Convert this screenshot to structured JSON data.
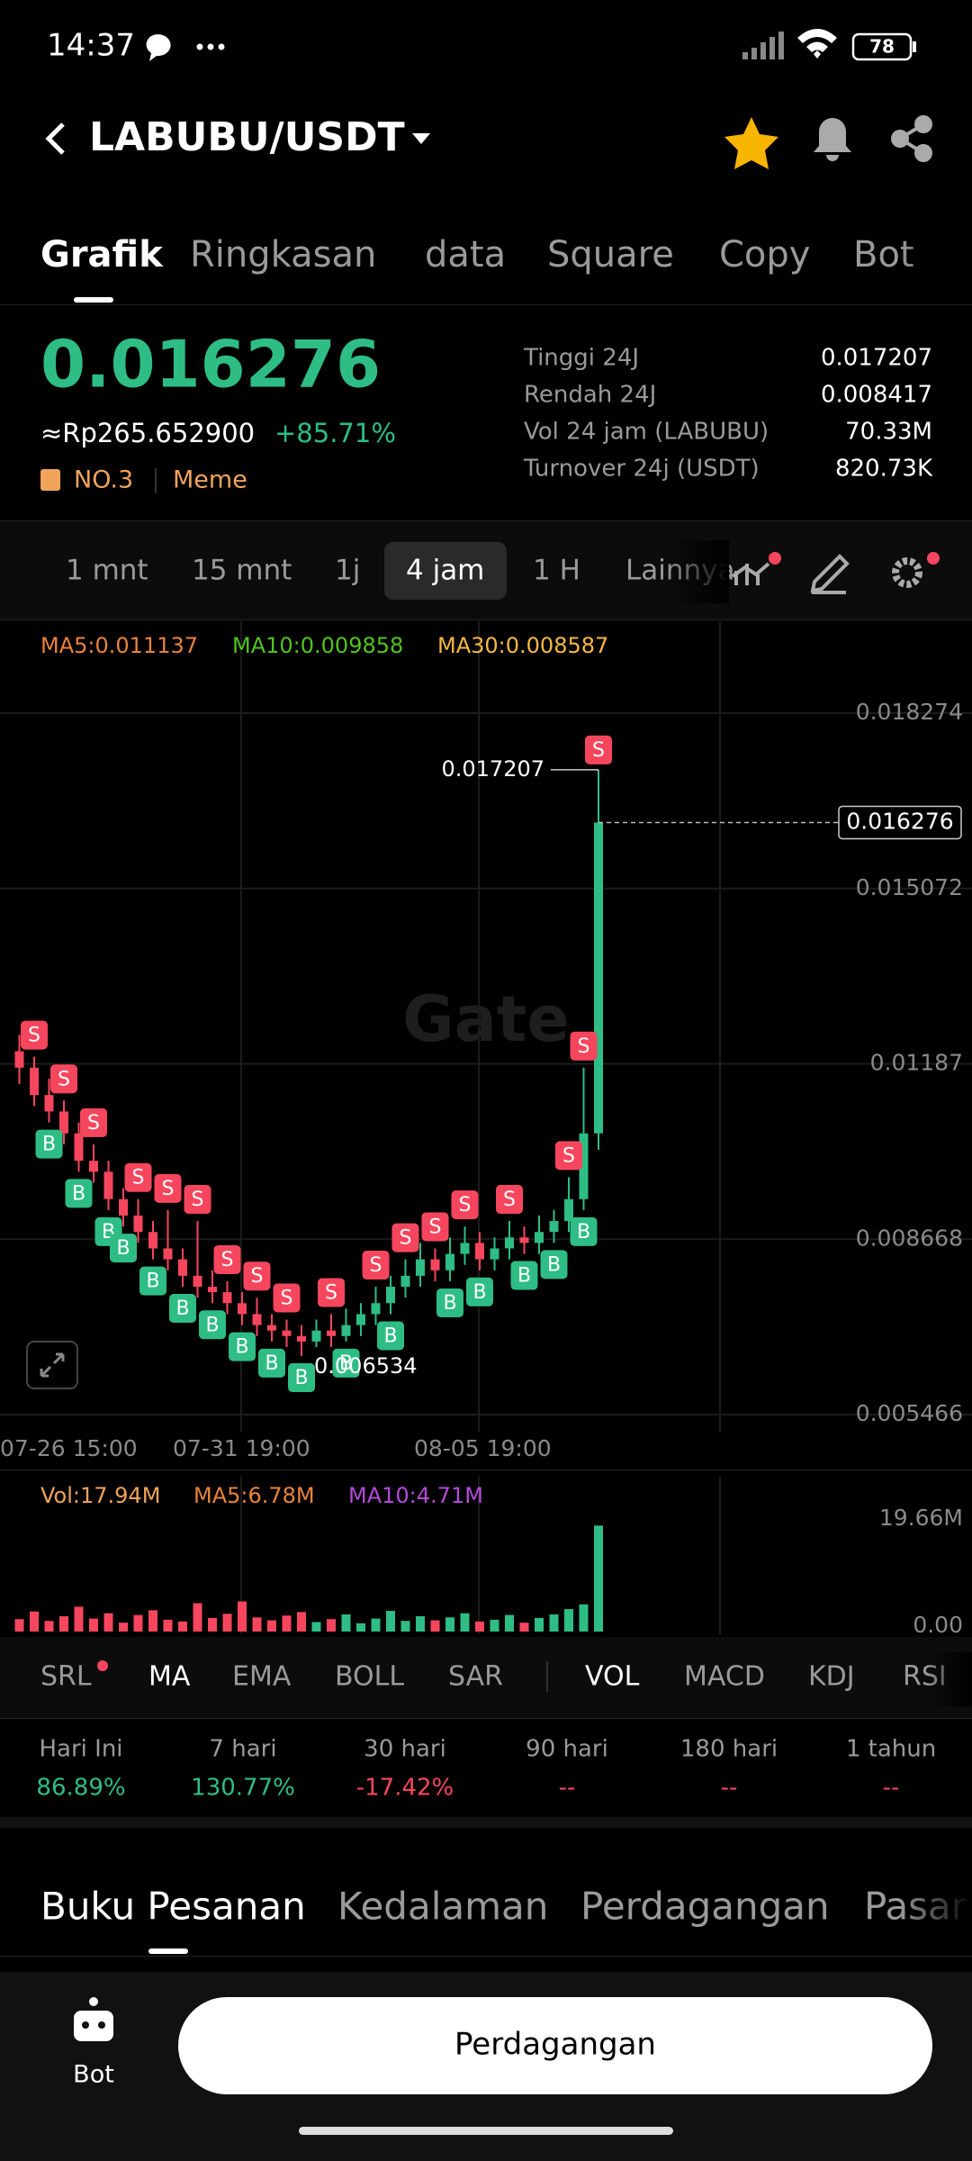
{
  "status_bar": {
    "time": "14:37",
    "battery": "78"
  },
  "header": {
    "pair": "LABUBU/USDT"
  },
  "tabs": [
    "Grafik",
    "Ringkasan",
    "data",
    "Square",
    "Copy",
    "Bot"
  ],
  "ticker": {
    "price": "0.016276",
    "fiat": "≈Rp265.652900",
    "change": "+85.71%",
    "rank": "NO.3",
    "tag": "Meme",
    "stats": [
      {
        "label": "Tinggi 24J",
        "value": "0.017207"
      },
      {
        "label": "Rendah 24J",
        "value": "0.008417"
      },
      {
        "label": "Vol 24 jam (LABUBU)",
        "value": "70.33M"
      },
      {
        "label": "Turnover 24j (USDT)",
        "value": "820.73K"
      }
    ]
  },
  "intervals": [
    "1 mnt",
    "15 mnt",
    "1j",
    "4 jam",
    "1 H",
    "Lainnya"
  ],
  "chart": {
    "ma": [
      "MA5:0.011137",
      "MA10:0.009858",
      "MA30:0.008587"
    ],
    "watermark": "Gate",
    "price_ticks": [
      0.018274,
      0.015072,
      0.01187,
      0.008668,
      0.005466
    ],
    "dates": [
      "07-26 15:00",
      "07-31 19:00",
      "08-05 19:00"
    ],
    "candles": [
      {
        "open": 0.0121,
        "high": 0.0124,
        "low": 0.0115,
        "close": 0.0118
      },
      {
        "open": 0.0118,
        "high": 0.012,
        "low": 0.0111,
        "close": 0.0113,
        "trades": [
          "S"
        ]
      },
      {
        "open": 0.0113,
        "high": 0.0116,
        "low": 0.0108,
        "close": 0.011,
        "trades": [
          "B"
        ]
      },
      {
        "open": 0.011,
        "high": 0.0112,
        "low": 0.0104,
        "close": 0.0106,
        "trades": [
          "S"
        ]
      },
      {
        "open": 0.0106,
        "high": 0.0108,
        "low": 0.0099,
        "close": 0.0101,
        "trades": [
          "B"
        ]
      },
      {
        "open": 0.0101,
        "high": 0.0104,
        "low": 0.0097,
        "close": 0.0099,
        "trades": [
          "S"
        ]
      },
      {
        "open": 0.0099,
        "high": 0.0101,
        "low": 0.0092,
        "close": 0.0094,
        "trades": [
          "B"
        ]
      },
      {
        "open": 0.0094,
        "high": 0.0096,
        "low": 0.0089,
        "close": 0.0091,
        "trades": [
          "B"
        ]
      },
      {
        "open": 0.0091,
        "high": 0.0094,
        "low": 0.0086,
        "close": 0.0088,
        "trades": [
          "S"
        ]
      },
      {
        "open": 0.0088,
        "high": 0.009,
        "low": 0.0083,
        "close": 0.0085,
        "trades": [
          "B"
        ]
      },
      {
        "open": 0.0085,
        "high": 0.0092,
        "low": 0.0081,
        "close": 0.0083,
        "trades": [
          "S"
        ]
      },
      {
        "open": 0.0083,
        "high": 0.0085,
        "low": 0.0078,
        "close": 0.008,
        "trades": [
          "B"
        ]
      },
      {
        "open": 0.008,
        "high": 0.009,
        "low": 0.0076,
        "close": 0.0078,
        "trades": [
          "S"
        ]
      },
      {
        "open": 0.0078,
        "high": 0.0081,
        "low": 0.0075,
        "close": 0.0077,
        "trades": [
          "B"
        ]
      },
      {
        "open": 0.0077,
        "high": 0.0079,
        "low": 0.0073,
        "close": 0.0075,
        "trades": [
          "S"
        ]
      },
      {
        "open": 0.0075,
        "high": 0.0077,
        "low": 0.0071,
        "close": 0.0073,
        "trades": [
          "B"
        ]
      },
      {
        "open": 0.0073,
        "high": 0.0076,
        "low": 0.0069,
        "close": 0.0071,
        "trades": [
          "S"
        ]
      },
      {
        "open": 0.0071,
        "high": 0.0073,
        "low": 0.0068,
        "close": 0.007,
        "trades": [
          "B"
        ]
      },
      {
        "open": 0.007,
        "high": 0.0072,
        "low": 0.0067,
        "close": 0.0069,
        "trades": [
          "S"
        ]
      },
      {
        "open": 0.0069,
        "high": 0.0071,
        "low": 0.006534,
        "close": 0.0068,
        "trades": [
          "B"
        ]
      },
      {
        "open": 0.0068,
        "high": 0.0072,
        "low": 0.0067,
        "close": 0.007
      },
      {
        "open": 0.007,
        "high": 0.0073,
        "low": 0.0067,
        "close": 0.0069,
        "trades": [
          "S"
        ]
      },
      {
        "open": 0.0069,
        "high": 0.0074,
        "low": 0.0068,
        "close": 0.0071,
        "trades": [
          "B"
        ]
      },
      {
        "open": 0.0071,
        "high": 0.0075,
        "low": 0.0069,
        "close": 0.0073
      },
      {
        "open": 0.0073,
        "high": 0.0078,
        "low": 0.0071,
        "close": 0.0075,
        "trades": [
          "S"
        ]
      },
      {
        "open": 0.0075,
        "high": 0.008,
        "low": 0.0073,
        "close": 0.0078,
        "trades": [
          "B"
        ]
      },
      {
        "open": 0.0078,
        "high": 0.0083,
        "low": 0.0076,
        "close": 0.008,
        "trades": [
          "S"
        ]
      },
      {
        "open": 0.008,
        "high": 0.0086,
        "low": 0.0078,
        "close": 0.0083
      },
      {
        "open": 0.0083,
        "high": 0.0085,
        "low": 0.0079,
        "close": 0.0081,
        "trades": [
          "S"
        ]
      },
      {
        "open": 0.0081,
        "high": 0.0087,
        "low": 0.0079,
        "close": 0.0084,
        "trades": [
          "B"
        ]
      },
      {
        "open": 0.0084,
        "high": 0.0089,
        "low": 0.0082,
        "close": 0.0086,
        "trades": [
          "S"
        ]
      },
      {
        "open": 0.0086,
        "high": 0.0088,
        "low": 0.0081,
        "close": 0.0083,
        "trades": [
          "B"
        ]
      },
      {
        "open": 0.0083,
        "high": 0.0087,
        "low": 0.0081,
        "close": 0.0085
      },
      {
        "open": 0.0085,
        "high": 0.009,
        "low": 0.0083,
        "close": 0.0087,
        "trades": [
          "S"
        ]
      },
      {
        "open": 0.0087,
        "high": 0.0089,
        "low": 0.0084,
        "close": 0.0086,
        "trades": [
          "B"
        ]
      },
      {
        "open": 0.0086,
        "high": 0.0091,
        "low": 0.0084,
        "close": 0.0088
      },
      {
        "open": 0.0088,
        "high": 0.0092,
        "low": 0.0086,
        "close": 0.009,
        "trades": [
          "B"
        ]
      },
      {
        "open": 0.009,
        "high": 0.0098,
        "low": 0.0088,
        "close": 0.0094,
        "trades": [
          "S"
        ]
      },
      {
        "open": 0.0094,
        "high": 0.0118,
        "low": 0.0092,
        "close": 0.0106,
        "trades": [
          "S",
          "B"
        ]
      },
      {
        "open": 0.0106,
        "high": 0.017207,
        "low": 0.0103,
        "close": 0.016276,
        "trades": [
          "S"
        ]
      }
    ],
    "volume": {
      "labels": [
        "Vol:17.94M",
        "MA5:6.78M",
        "MA10:4.71M"
      ],
      "ticks": [
        {
          "value": 19.66,
          "label": "19.66M"
        },
        {
          "value": 0,
          "label": "0.00"
        }
      ],
      "values": [
        2.1,
        3.4,
        1.8,
        2.6,
        4.2,
        2.2,
        3.1,
        1.5,
        2.8,
        3.6,
        2.0,
        1.7,
        4.8,
        2.3,
        3.0,
        5.1,
        2.4,
        1.9,
        2.7,
        3.3,
        1.6,
        2.1,
        2.9,
        1.4,
        2.2,
        3.5,
        1.8,
        2.6,
        1.9,
        2.4,
        3.1,
        1.7,
        2.0,
        2.8,
        1.5,
        2.3,
        2.9,
        3.8,
        4.6,
        17.94
      ]
    }
  },
  "indicators": [
    "SRL",
    "MA",
    "EMA",
    "BOLL",
    "SAR",
    "VOL",
    "MACD",
    "KDJ",
    "RSI"
  ],
  "returns": [
    {
      "period": "Hari Ini",
      "value": "86.89%"
    },
    {
      "period": "7 hari",
      "value": "130.77%"
    },
    {
      "period": "30 hari",
      "value": "-17.42%"
    },
    {
      "period": "90 hari",
      "value": "--"
    },
    {
      "period": "180 hari",
      "value": "--"
    },
    {
      "period": "1 tahun",
      "value": "--"
    }
  ],
  "book_tabs": [
    "Buku Pesanan",
    "Kedalaman",
    "Perdagangan",
    "Pasar"
  ],
  "bottom_bar": {
    "bot": "Bot",
    "trade_button": "Perdagangan"
  }
}
